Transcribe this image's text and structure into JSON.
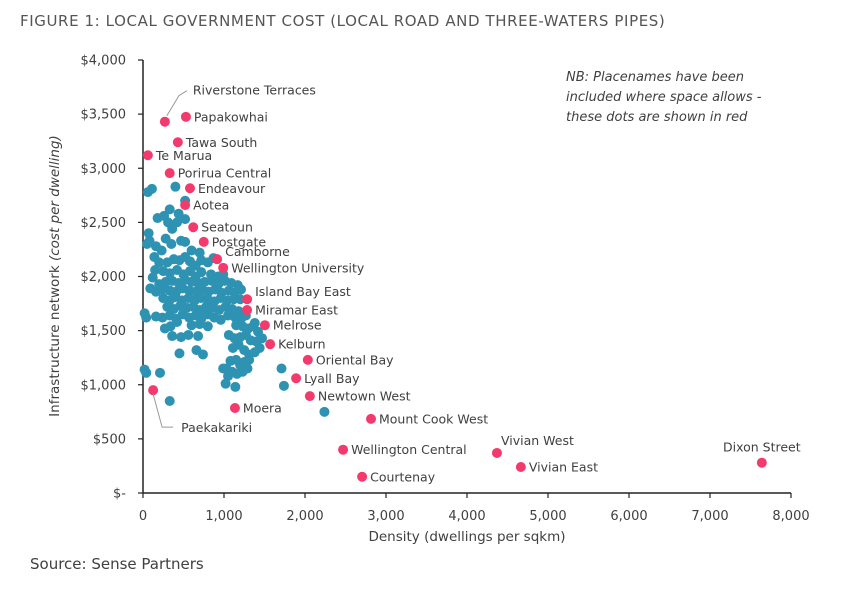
{
  "title": "FIGURE 1: LOCAL GOVERNMENT COST (LOCAL ROAD AND THREE-WATERS PIPES)",
  "source": "Source: Sense Partners",
  "note": "NB: Placenames have been included where space allows - these dots are shown in red",
  "colors": {
    "named": "#F23A6C",
    "unnamed": "#2E93B3",
    "axis": "#222222",
    "leader": "#999999"
  },
  "chart_data": {
    "type": "scatter",
    "title": "FIGURE 1: LOCAL GOVERNMENT COST (LOCAL ROAD AND THREE-WATERS PIPES)",
    "xlabel": "Density (dwellings per sqkm)",
    "ylabel_main": "Infrastructure network ",
    "ylabel_italic": "(cost per dwelling)",
    "xlim": [
      0,
      8000
    ],
    "ylim": [
      0,
      4000
    ],
    "x_ticks": [
      0,
      1000,
      2000,
      3000,
      4000,
      5000,
      6000,
      7000,
      8000
    ],
    "x_tick_labels": [
      "0",
      "1,000",
      "2,000",
      "3,000",
      "4,000",
      "5,000",
      "6,000",
      "7,000",
      "8,000"
    ],
    "y_ticks": [
      0,
      500,
      1000,
      1500,
      2000,
      2500,
      3000,
      3500,
      4000
    ],
    "y_tick_labels": [
      "$-",
      "$500",
      "$1,000",
      "$1,500",
      "$2,000",
      "$2,500",
      "$3,000",
      "$3,500",
      "$4,000"
    ],
    "grid": false,
    "legend": "none",
    "annotation": "NB: Placenames have been included where space allows - these dots are shown in red",
    "named_points": [
      {
        "name": "Riverstone Terraces",
        "x": 270,
        "y": 3430,
        "label_pos": "leader-up"
      },
      {
        "name": "Papakowhai",
        "x": 530,
        "y": 3475,
        "label_pos": "right"
      },
      {
        "name": "Tawa South",
        "x": 430,
        "y": 3240,
        "label_pos": "right"
      },
      {
        "name": "Te Marua",
        "x": 60,
        "y": 3120,
        "label_pos": "right"
      },
      {
        "name": "Porirua Central",
        "x": 330,
        "y": 2955,
        "label_pos": "right"
      },
      {
        "name": "Endeavour",
        "x": 580,
        "y": 2815,
        "label_pos": "right"
      },
      {
        "name": "Aotea",
        "x": 520,
        "y": 2660,
        "label_pos": "right"
      },
      {
        "name": "Seatoun",
        "x": 620,
        "y": 2455,
        "label_pos": "right"
      },
      {
        "name": "Postgate",
        "x": 750,
        "y": 2320,
        "label_pos": "right"
      },
      {
        "name": "Camborne",
        "x": 915,
        "y": 2160,
        "label_pos": "right-up"
      },
      {
        "name": "Wellington University",
        "x": 990,
        "y": 2080,
        "label_pos": "right"
      },
      {
        "name": "Island Bay East",
        "x": 1285,
        "y": 1790,
        "label_pos": "right-up"
      },
      {
        "name": "Miramar East",
        "x": 1285,
        "y": 1690,
        "label_pos": "right"
      },
      {
        "name": "Melrose",
        "x": 1505,
        "y": 1550,
        "label_pos": "right"
      },
      {
        "name": "Kelburn",
        "x": 1570,
        "y": 1375,
        "label_pos": "right"
      },
      {
        "name": "Oriental Bay",
        "x": 2035,
        "y": 1230,
        "label_pos": "right"
      },
      {
        "name": "Lyall Bay",
        "x": 1890,
        "y": 1060,
        "label_pos": "right"
      },
      {
        "name": "Newtown West",
        "x": 2060,
        "y": 895,
        "label_pos": "right"
      },
      {
        "name": "Moera",
        "x": 1135,
        "y": 785,
        "label_pos": "right"
      },
      {
        "name": "Paekakariki",
        "x": 125,
        "y": 950,
        "label_pos": "leader-down"
      },
      {
        "name": "Mount Cook West",
        "x": 2815,
        "y": 685,
        "label_pos": "right"
      },
      {
        "name": "Wellington Central",
        "x": 2470,
        "y": 400,
        "label_pos": "right"
      },
      {
        "name": "Courtenay",
        "x": 2705,
        "y": 150,
        "label_pos": "right"
      },
      {
        "name": "Vivian West",
        "x": 4370,
        "y": 370,
        "label_pos": "above"
      },
      {
        "name": "Vivian East",
        "x": 4665,
        "y": 240,
        "label_pos": "right"
      },
      {
        "name": "Dixon Street",
        "x": 7640,
        "y": 280,
        "label_pos": "above"
      }
    ],
    "unnamed_points": [
      [
        60,
        2780
      ],
      [
        110,
        2810
      ],
      [
        400,
        2830
      ],
      [
        520,
        2700
      ],
      [
        330,
        2620
      ],
      [
        440,
        2580
      ],
      [
        180,
        2540
      ],
      [
        260,
        2560
      ],
      [
        310,
        2500
      ],
      [
        420,
        2500
      ],
      [
        520,
        2530
      ],
      [
        360,
        2440
      ],
      [
        280,
        2350
      ],
      [
        350,
        2300
      ],
      [
        70,
        2400
      ],
      [
        80,
        2330
      ],
      [
        50,
        2300
      ],
      [
        160,
        2280
      ],
      [
        230,
        2240
      ],
      [
        470,
        2330
      ],
      [
        520,
        2320
      ],
      [
        600,
        2240
      ],
      [
        700,
        2220
      ],
      [
        140,
        2180
      ],
      [
        200,
        2130
      ],
      [
        300,
        2130
      ],
      [
        380,
        2160
      ],
      [
        450,
        2150
      ],
      [
        520,
        2180
      ],
      [
        580,
        2140
      ],
      [
        650,
        2100
      ],
      [
        720,
        2150
      ],
      [
        800,
        2130
      ],
      [
        870,
        2170
      ],
      [
        150,
        2060
      ],
      [
        250,
        2050
      ],
      [
        330,
        2030
      ],
      [
        420,
        2060
      ],
      [
        500,
        2020
      ],
      [
        580,
        2050
      ],
      [
        650,
        2000
      ],
      [
        720,
        2040
      ],
      [
        840,
        2020
      ],
      [
        930,
        2000
      ],
      [
        990,
        2020
      ],
      [
        120,
        1990
      ],
      [
        200,
        1930
      ],
      [
        280,
        1950
      ],
      [
        360,
        1960
      ],
      [
        440,
        1940
      ],
      [
        520,
        1970
      ],
      [
        600,
        1950
      ],
      [
        680,
        1940
      ],
      [
        760,
        1950
      ],
      [
        850,
        1960
      ],
      [
        930,
        1930
      ],
      [
        1010,
        1960
      ],
      [
        1090,
        1940
      ],
      [
        1170,
        1920
      ],
      [
        90,
        1890
      ],
      [
        160,
        1860
      ],
      [
        240,
        1880
      ],
      [
        330,
        1870
      ],
      [
        410,
        1860
      ],
      [
        490,
        1890
      ],
      [
        570,
        1870
      ],
      [
        650,
        1860
      ],
      [
        730,
        1880
      ],
      [
        810,
        1860
      ],
      [
        890,
        1880
      ],
      [
        970,
        1850
      ],
      [
        1060,
        1870
      ],
      [
        1130,
        1850
      ],
      [
        1210,
        1880
      ],
      [
        250,
        1800
      ],
      [
        330,
        1780
      ],
      [
        400,
        1810
      ],
      [
        480,
        1780
      ],
      [
        560,
        1800
      ],
      [
        640,
        1780
      ],
      [
        720,
        1800
      ],
      [
        800,
        1790
      ],
      [
        880,
        1770
      ],
      [
        960,
        1800
      ],
      [
        1040,
        1780
      ],
      [
        1120,
        1790
      ],
      [
        1200,
        1790
      ],
      [
        300,
        1720
      ],
      [
        380,
        1700
      ],
      [
        460,
        1730
      ],
      [
        540,
        1710
      ],
      [
        620,
        1720
      ],
      [
        700,
        1690
      ],
      [
        780,
        1720
      ],
      [
        860,
        1710
      ],
      [
        940,
        1690
      ],
      [
        1020,
        1720
      ],
      [
        1100,
        1700
      ],
      [
        1180,
        1680
      ],
      [
        1270,
        1640
      ],
      [
        20,
        1660
      ],
      [
        40,
        1620
      ],
      [
        160,
        1630
      ],
      [
        240,
        1620
      ],
      [
        330,
        1640
      ],
      [
        410,
        1610
      ],
      [
        490,
        1650
      ],
      [
        570,
        1620
      ],
      [
        650,
        1640
      ],
      [
        720,
        1610
      ],
      [
        800,
        1650
      ],
      [
        880,
        1620
      ],
      [
        960,
        1600
      ],
      [
        1050,
        1640
      ],
      [
        1140,
        1620
      ],
      [
        1220,
        1620
      ],
      [
        1380,
        1570
      ],
      [
        600,
        1550
      ],
      [
        700,
        1560
      ],
      [
        800,
        1540
      ],
      [
        270,
        1520
      ],
      [
        340,
        1540
      ],
      [
        420,
        1580
      ],
      [
        1150,
        1550
      ],
      [
        1230,
        1540
      ],
      [
        1300,
        1520
      ],
      [
        1360,
        1540
      ],
      [
        1420,
        1490
      ],
      [
        1470,
        1430
      ],
      [
        360,
        1450
      ],
      [
        470,
        1440
      ],
      [
        560,
        1460
      ],
      [
        680,
        1450
      ],
      [
        1060,
        1460
      ],
      [
        1130,
        1430
      ],
      [
        1200,
        1440
      ],
      [
        1270,
        1460
      ],
      [
        1330,
        1410
      ],
      [
        1400,
        1400
      ],
      [
        1110,
        1340
      ],
      [
        1180,
        1370
      ],
      [
        1250,
        1320
      ],
      [
        1310,
        1280
      ],
      [
        1380,
        1300
      ],
      [
        1440,
        1340
      ],
      [
        450,
        1290
      ],
      [
        740,
        1280
      ],
      [
        660,
        1320
      ],
      [
        1080,
        1220
      ],
      [
        1150,
        1230
      ],
      [
        1200,
        1180
      ],
      [
        1250,
        1210
      ],
      [
        1310,
        1230
      ],
      [
        1030,
        1150
      ],
      [
        1100,
        1120
      ],
      [
        1160,
        1100
      ],
      [
        1230,
        1120
      ],
      [
        1290,
        1150
      ],
      [
        20,
        1140
      ],
      [
        40,
        1110
      ],
      [
        210,
        1110
      ],
      [
        1020,
        1010
      ],
      [
        1140,
        980
      ],
      [
        1710,
        1150
      ],
      [
        1740,
        990
      ],
      [
        330,
        850
      ],
      [
        2240,
        750
      ],
      [
        990,
        1150
      ],
      [
        1050,
        1080
      ]
    ]
  }
}
